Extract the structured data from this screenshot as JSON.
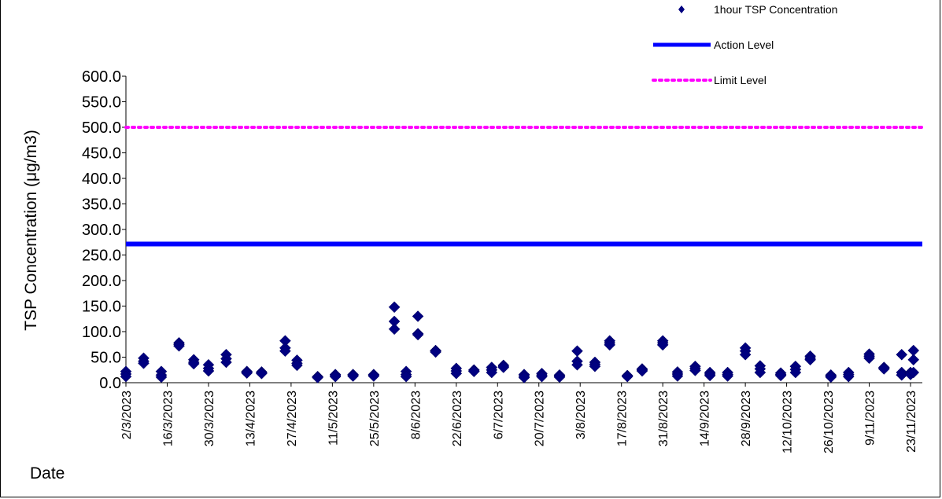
{
  "chart_data": {
    "type": "scatter",
    "title": "",
    "ylabel": "TSP Concentration (μg/m3)",
    "xlabel": "Date",
    "ylim": [
      0,
      600
    ],
    "ytick_step": 50,
    "ytick_labels": [
      "0.0",
      "50.0",
      "100.0",
      "150.0",
      "200.0",
      "250.0",
      "300.0",
      "350.0",
      "400.0",
      "450.0",
      "500.0",
      "550.0",
      "600.0"
    ],
    "x_start": "2/3/2023",
    "x_end": "27/11/2023",
    "xtick_labels": [
      "2/3/2023",
      "16/3/2023",
      "30/3/2023",
      "13/4/2023",
      "27/4/2023",
      "11/5/2023",
      "25/5/2023",
      "8/6/2023",
      "22/6/2023",
      "6/7/2023",
      "20/7/2023",
      "3/8/2023",
      "17/8/2023",
      "31/8/2023",
      "14/9/2023",
      "28/9/2023",
      "12/10/2023",
      "26/10/2023",
      "9/11/2023",
      "23/11/2023"
    ],
    "series": [
      {
        "name": "1hour TSP Concentration",
        "marker": "diamond",
        "color": "#000080",
        "points": [
          [
            "2/3/2023",
            22
          ],
          [
            "2/3/2023",
            17
          ],
          [
            "2/3/2023",
            12
          ],
          [
            "8/3/2023",
            48
          ],
          [
            "8/3/2023",
            42
          ],
          [
            "8/3/2023",
            38
          ],
          [
            "14/3/2023",
            22
          ],
          [
            "14/3/2023",
            15
          ],
          [
            "14/3/2023",
            11
          ],
          [
            "20/3/2023",
            78
          ],
          [
            "20/3/2023",
            75
          ],
          [
            "20/3/2023",
            72
          ],
          [
            "25/3/2023",
            45
          ],
          [
            "25/3/2023",
            40
          ],
          [
            "25/3/2023",
            37
          ],
          [
            "30/3/2023",
            35
          ],
          [
            "30/3/2023",
            28
          ],
          [
            "30/3/2023",
            23
          ],
          [
            "5/4/2023",
            55
          ],
          [
            "5/4/2023",
            47
          ],
          [
            "5/4/2023",
            40
          ],
          [
            "12/4/2023",
            22
          ],
          [
            "12/4/2023",
            20
          ],
          [
            "12/4/2023",
            19
          ],
          [
            "17/4/2023",
            21
          ],
          [
            "17/4/2023",
            19
          ],
          [
            "17/4/2023",
            18
          ],
          [
            "25/4/2023",
            82
          ],
          [
            "25/4/2023",
            68
          ],
          [
            "25/4/2023",
            62
          ],
          [
            "29/4/2023",
            44
          ],
          [
            "29/4/2023",
            38
          ],
          [
            "29/4/2023",
            34
          ],
          [
            "6/5/2023",
            12
          ],
          [
            "6/5/2023",
            11
          ],
          [
            "6/5/2023",
            10
          ],
          [
            "12/5/2023",
            16
          ],
          [
            "12/5/2023",
            14
          ],
          [
            "12/5/2023",
            12
          ],
          [
            "18/5/2023",
            16
          ],
          [
            "18/5/2023",
            14
          ],
          [
            "18/5/2023",
            13
          ],
          [
            "25/5/2023",
            16
          ],
          [
            "25/5/2023",
            14
          ],
          [
            "25/5/2023",
            13
          ],
          [
            "1/6/2023",
            148
          ],
          [
            "1/6/2023",
            120
          ],
          [
            "1/6/2023",
            105
          ],
          [
            "5/6/2023",
            22
          ],
          [
            "5/6/2023",
            16
          ],
          [
            "5/6/2023",
            12
          ],
          [
            "9/6/2023",
            130
          ],
          [
            "9/6/2023",
            96
          ],
          [
            "9/6/2023",
            94
          ],
          [
            "15/6/2023",
            63
          ],
          [
            "15/6/2023",
            62
          ],
          [
            "15/6/2023",
            60
          ],
          [
            "22/6/2023",
            28
          ],
          [
            "22/6/2023",
            23
          ],
          [
            "22/6/2023",
            18
          ],
          [
            "28/6/2023",
            25
          ],
          [
            "28/6/2023",
            23
          ],
          [
            "28/6/2023",
            22
          ],
          [
            "4/7/2023",
            30
          ],
          [
            "4/7/2023",
            25
          ],
          [
            "4/7/2023",
            20
          ],
          [
            "8/7/2023",
            34
          ],
          [
            "8/7/2023",
            32
          ],
          [
            "8/7/2023",
            30
          ],
          [
            "15/7/2023",
            16
          ],
          [
            "15/7/2023",
            13
          ],
          [
            "15/7/2023",
            10
          ],
          [
            "21/7/2023",
            18
          ],
          [
            "21/7/2023",
            15
          ],
          [
            "21/7/2023",
            12
          ],
          [
            "27/7/2023",
            15
          ],
          [
            "27/7/2023",
            13
          ],
          [
            "27/7/2023",
            11
          ],
          [
            "2/8/2023",
            62
          ],
          [
            "2/8/2023",
            42
          ],
          [
            "2/8/2023",
            35
          ],
          [
            "8/8/2023",
            40
          ],
          [
            "8/8/2023",
            36
          ],
          [
            "8/8/2023",
            32
          ],
          [
            "13/8/2023",
            82
          ],
          [
            "13/8/2023",
            78
          ],
          [
            "13/8/2023",
            74
          ],
          [
            "19/8/2023",
            14
          ],
          [
            "19/8/2023",
            13
          ],
          [
            "19/8/2023",
            12
          ],
          [
            "24/8/2023",
            27
          ],
          [
            "24/8/2023",
            25
          ],
          [
            "24/8/2023",
            23
          ],
          [
            "31/8/2023",
            82
          ],
          [
            "31/8/2023",
            78
          ],
          [
            "31/8/2023",
            74
          ],
          [
            "5/9/2023",
            21
          ],
          [
            "5/9/2023",
            17
          ],
          [
            "5/9/2023",
            13
          ],
          [
            "11/9/2023",
            32
          ],
          [
            "11/9/2023",
            28
          ],
          [
            "11/9/2023",
            24
          ],
          [
            "16/9/2023",
            20
          ],
          [
            "16/9/2023",
            17
          ],
          [
            "16/9/2023",
            14
          ],
          [
            "22/9/2023",
            20
          ],
          [
            "22/9/2023",
            16
          ],
          [
            "22/9/2023",
            13
          ],
          [
            "28/9/2023",
            68
          ],
          [
            "28/9/2023",
            62
          ],
          [
            "28/9/2023",
            55
          ],
          [
            "3/10/2023",
            33
          ],
          [
            "3/10/2023",
            27
          ],
          [
            "3/10/2023",
            20
          ],
          [
            "10/10/2023",
            19
          ],
          [
            "10/10/2023",
            16
          ],
          [
            "10/10/2023",
            14
          ],
          [
            "15/10/2023",
            32
          ],
          [
            "15/10/2023",
            26
          ],
          [
            "15/10/2023",
            20
          ],
          [
            "20/10/2023",
            52
          ],
          [
            "20/10/2023",
            48
          ],
          [
            "20/10/2023",
            45
          ],
          [
            "27/10/2023",
            15
          ],
          [
            "27/10/2023",
            13
          ],
          [
            "27/10/2023",
            11
          ],
          [
            "2/11/2023",
            20
          ],
          [
            "2/11/2023",
            16
          ],
          [
            "2/11/2023",
            12
          ],
          [
            "9/11/2023",
            56
          ],
          [
            "9/11/2023",
            52
          ],
          [
            "9/11/2023",
            48
          ],
          [
            "14/11/2023",
            30
          ],
          [
            "14/11/2023",
            28
          ],
          [
            "14/11/2023",
            27
          ],
          [
            "20/11/2023",
            55
          ],
          [
            "20/11/2023",
            20
          ],
          [
            "20/11/2023",
            15
          ],
          [
            "23/11/2023",
            20
          ],
          [
            "23/11/2023",
            18
          ],
          [
            "23/11/2023",
            16
          ],
          [
            "24/11/2023",
            63
          ],
          [
            "24/11/2023",
            45
          ],
          [
            "24/11/2023",
            20
          ]
        ]
      },
      {
        "name": "Action Level",
        "type": "hline",
        "value": 271.5,
        "color": "#0000ff",
        "style": "solid"
      },
      {
        "name": "Limit Level",
        "type": "hline",
        "value": 500,
        "color": "#ff00ff",
        "style": "dotted"
      }
    ],
    "legend_position": "top-right",
    "grid": false
  }
}
